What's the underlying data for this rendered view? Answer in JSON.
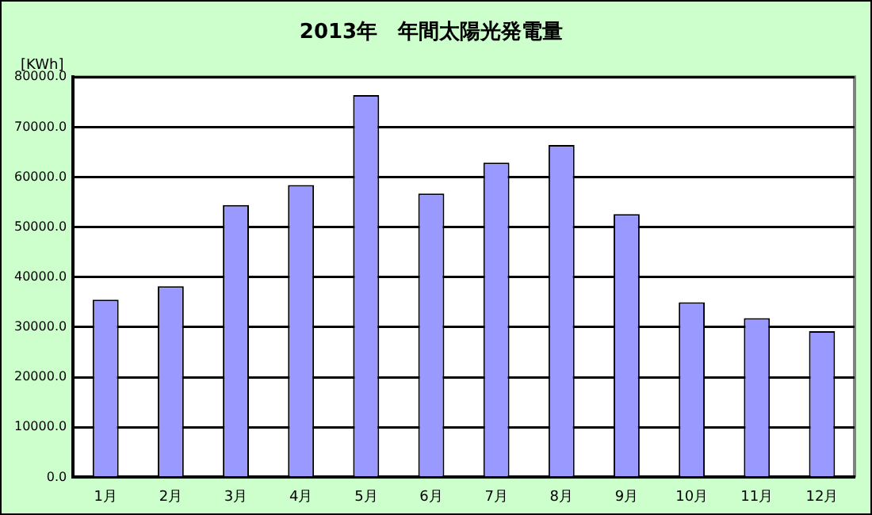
{
  "chart_data": {
    "type": "bar",
    "title": "2013年　年間太陽光発電量",
    "ylabel": "[KWh]",
    "categories": [
      "1月",
      "2月",
      "3月",
      "4月",
      "5月",
      "6月",
      "7月",
      "8月",
      "9月",
      "10月",
      "11月",
      "12月"
    ],
    "values": [
      35500,
      38200,
      54400,
      58400,
      76400,
      56700,
      62900,
      66400,
      52600,
      35000,
      31800,
      29200
    ],
    "color": "#9999ff",
    "ylim": [
      0,
      80000
    ],
    "yticks": [
      {
        "value": 0,
        "label": "0.0"
      },
      {
        "value": 10000,
        "label": "10000.0"
      },
      {
        "value": 20000,
        "label": "20000.0"
      },
      {
        "value": 30000,
        "label": "30000.0"
      },
      {
        "value": 40000,
        "label": "40000.0"
      },
      {
        "value": 50000,
        "label": "50000.0"
      },
      {
        "value": 60000,
        "label": "60000.0"
      },
      {
        "value": 70000,
        "label": "70000.0"
      },
      {
        "value": 80000,
        "label": "80000.0"
      }
    ],
    "grid": "y",
    "legend": false
  }
}
